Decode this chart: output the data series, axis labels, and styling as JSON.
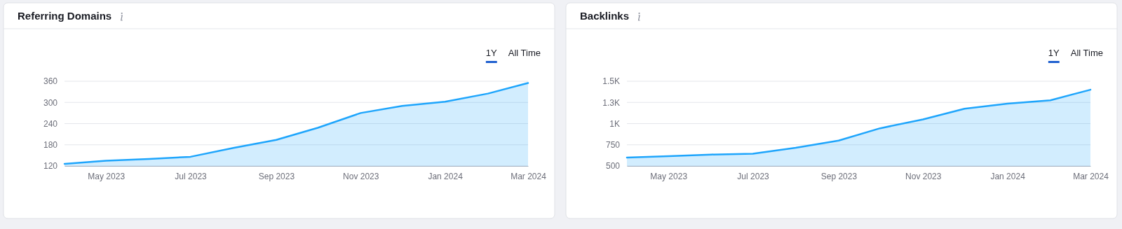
{
  "chart_data": [
    {
      "type": "area",
      "title": "Referring Domains",
      "annotations": [
        "1Y",
        "All Time"
      ],
      "x": [
        "2023-04",
        "2023-05",
        "2023-06",
        "2023-07",
        "2023-08",
        "2023-09",
        "2023-10",
        "2023-11",
        "2023-12",
        "2024-01",
        "2024-02",
        "2024-03"
      ],
      "series": [
        {
          "color": "#1ea5fc",
          "values": [
            126,
            135,
            140,
            146,
            171,
            194,
            228,
            270,
            290,
            302,
            325,
            355
          ]
        }
      ],
      "xlim": [
        "2023-04",
        "2024-03"
      ],
      "xticks": [
        {
          "value": "2023-05",
          "label": "May 2023"
        },
        {
          "value": "2023-07",
          "label": "Jul 2023"
        },
        {
          "value": "2023-09",
          "label": "Sep 2023"
        },
        {
          "value": "2023-11",
          "label": "Nov 2023"
        },
        {
          "value": "2024-01",
          "label": "Jan 2024"
        },
        {
          "value": "2024-03",
          "label": "Mar 2024"
        }
      ],
      "ylim": [
        120,
        360
      ],
      "yticks": [
        120,
        180,
        240,
        300,
        360
      ],
      "grid": "y",
      "marker": "none"
    },
    {
      "type": "area",
      "title": "Backlinks",
      "annotations": [
        "1Y",
        "All Time"
      ],
      "x": [
        "2023-04",
        "2023-05",
        "2023-06",
        "2023-07",
        "2023-08",
        "2023-09",
        "2023-10",
        "2023-11",
        "2023-12",
        "2024-01",
        "2024-02",
        "2024-03"
      ],
      "series": [
        {
          "color": "#1ea5fc",
          "values": [
            600,
            615,
            635,
            645,
            715,
            800,
            945,
            1050,
            1175,
            1235,
            1275,
            1400
          ]
        }
      ],
      "xlim": [
        "2023-04",
        "2024-03"
      ],
      "xticks": [
        {
          "value": "2023-05",
          "label": "May 2023"
        },
        {
          "value": "2023-07",
          "label": "Jul 2023"
        },
        {
          "value": "2023-09",
          "label": "Sep 2023"
        },
        {
          "value": "2023-11",
          "label": "Nov 2023"
        },
        {
          "value": "2024-01",
          "label": "Jan 2024"
        },
        {
          "value": "2024-03",
          "label": "Mar 2024"
        }
      ],
      "ylim": [
        500,
        1500
      ],
      "yticks": [
        500,
        750,
        {
          "value": 1000,
          "label": "1K"
        },
        {
          "value": 1250,
          "label": "1.3K"
        },
        {
          "value": 1500,
          "label": "1.5K"
        }
      ],
      "grid": "y",
      "marker": "none"
    }
  ]
}
